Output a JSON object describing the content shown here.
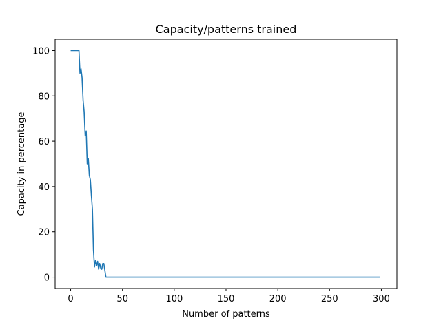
{
  "chart_data": {
    "type": "line",
    "title": "Capacity/patterns trained",
    "xlabel": "Number of patterns",
    "ylabel": "Capacity in percentage",
    "xlim": [
      -15,
      315
    ],
    "ylim": [
      -5,
      105
    ],
    "xticks": [
      0,
      50,
      100,
      150,
      200,
      250,
      300
    ],
    "yticks": [
      0,
      20,
      40,
      60,
      80,
      100
    ],
    "grid": false,
    "colors": {
      "line": "#1f77b4",
      "axes": "#000000",
      "background": "#ffffff"
    },
    "series": [
      {
        "x": [
          0,
          1,
          2,
          3,
          4,
          5,
          6,
          7,
          8,
          9,
          10,
          11,
          12,
          13,
          14,
          15,
          16,
          17,
          18,
          19,
          20,
          21,
          22,
          23,
          24,
          25,
          26,
          27,
          28,
          29,
          30,
          31,
          32,
          33,
          34,
          35,
          40,
          60,
          100,
          150,
          200,
          250,
          299
        ],
        "y": [
          100,
          100,
          100,
          100,
          100,
          100,
          100,
          100,
          100,
          90,
          92,
          88,
          78,
          73,
          62.5,
          64.5,
          50,
          52.5,
          45,
          43,
          36,
          30,
          12,
          4.5,
          7.5,
          5,
          7,
          3.5,
          6,
          4,
          3.5,
          6,
          6,
          3,
          0,
          0,
          0,
          0,
          0,
          0,
          0,
          0,
          0
        ]
      }
    ]
  }
}
